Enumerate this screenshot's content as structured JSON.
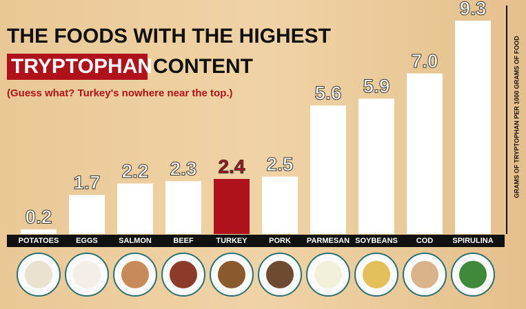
{
  "chart_data": {
    "type": "bar",
    "title": "THE FOODS WITH THE HIGHEST",
    "title_highlight": "TRYPTOPHAN",
    "title_end": "CONTENT",
    "subtitle": "(Guess what? Turkey's nowhere near the top.)",
    "y_label": "GRAMS OF TRYPTOPHAN PER 1000 GRAMS OF FOOD",
    "categories": [
      "POTATOES",
      "EGGS",
      "SALMON",
      "BEEF",
      "TURKEY",
      "PORK",
      "PARMESAN",
      "SOYBEANS",
      "COD",
      "SPIRULINA"
    ],
    "values": [
      0.2,
      1.7,
      2.2,
      2.3,
      2.4,
      2.5,
      5.6,
      5.9,
      7.0,
      9.3
    ],
    "value_labels": [
      "0.2",
      "1.7",
      "2.2",
      "2.3",
      "2.4",
      "2.5",
      "5.6",
      "5.9",
      "7.0",
      "9.3"
    ],
    "colors": [
      "#ffffff",
      "#ffffff",
      "#ffffff",
      "#ffffff",
      "#b0121b",
      "#ffffff",
      "#ffffff",
      "#ffffff",
      "#ffffff",
      "#ffffff"
    ],
    "ylim": [
      0,
      9.3
    ]
  }
}
